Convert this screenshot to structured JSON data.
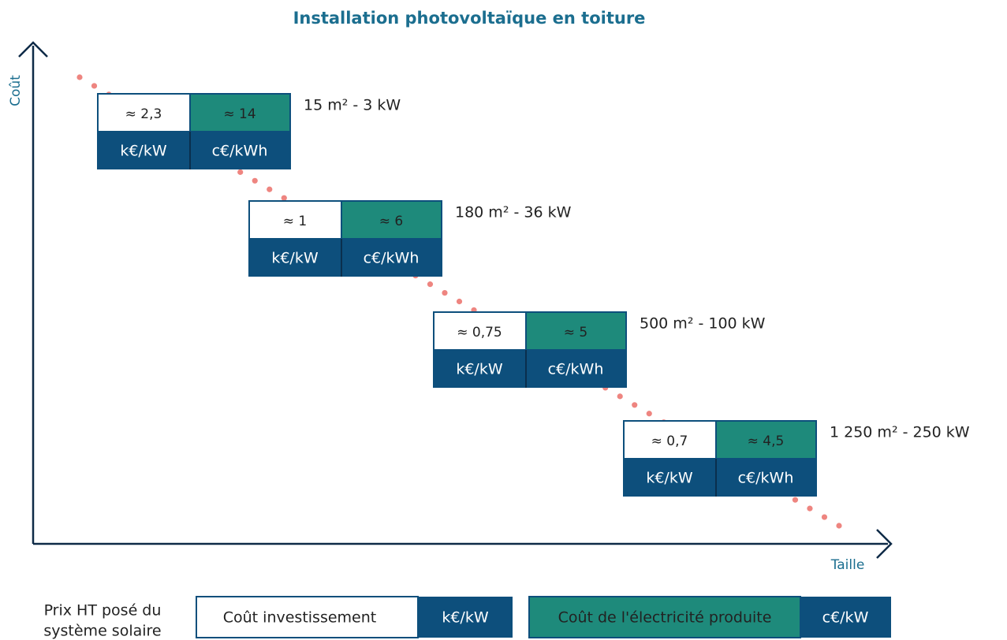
{
  "title": "Installation photovoltaïque en toiture",
  "axes": {
    "y_label": "Coût",
    "x_label": "Taille"
  },
  "tiers": [
    {
      "size": "15 m² - 3 kW",
      "investment": "≈ 2,3",
      "investment_unit": "k€/kW",
      "electricity": "≈ 14",
      "electricity_unit": "c€/kWh"
    },
    {
      "size": "180 m² - 36 kW",
      "investment": "≈ 1",
      "investment_unit": "k€/kW",
      "electricity": "≈ 6",
      "electricity_unit": "c€/kWh"
    },
    {
      "size": "500 m² - 100 kW",
      "investment": "≈ 0,75",
      "investment_unit": "k€/kW",
      "electricity": "≈ 5",
      "electricity_unit": "c€/kWh"
    },
    {
      "size": "1 250 m² - 250 kW",
      "investment": "≈ 0,7",
      "investment_unit": "k€/kW",
      "electricity": "≈ 4,5",
      "electricity_unit": "c€/kWh"
    }
  ],
  "legend": {
    "caption_line1": "Prix HT posé du",
    "caption_line2": "système solaire",
    "investment_label": "Coût investissement",
    "investment_unit": "k€/kW",
    "electricity_label": "Coût de l'électricité produite",
    "electricity_unit": "c€/kW"
  }
}
